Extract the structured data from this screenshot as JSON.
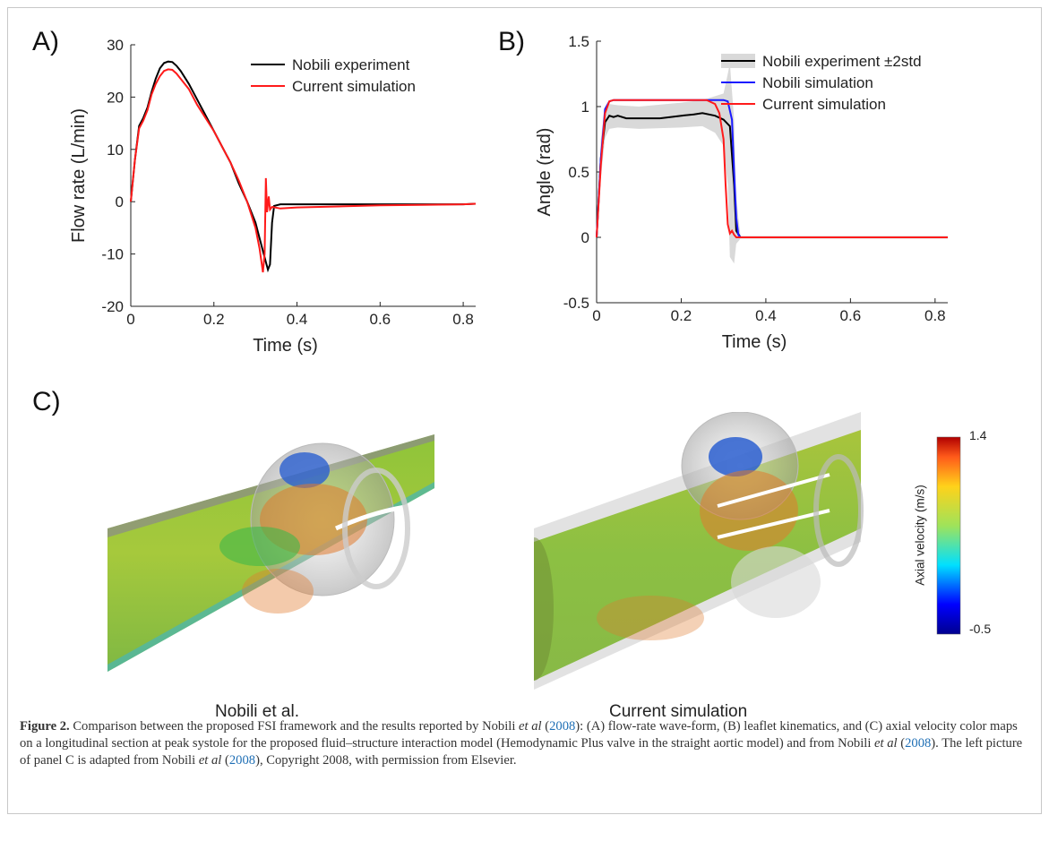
{
  "panels": {
    "a": "A)",
    "b": "B)",
    "c": "C)"
  },
  "chart_data": [
    {
      "type": "line",
      "xlabel": "Time (s)",
      "ylabel": "Flow rate (L/min)",
      "xlim": [
        0,
        0.83
      ],
      "ylim": [
        -20,
        30
      ],
      "xticks": [
        "0",
        "0.2",
        "0.4",
        "0.6",
        "0.8"
      ],
      "yticks": [
        "-20",
        "-10",
        "0",
        "10",
        "20",
        "30"
      ],
      "legend_position": "top-right",
      "series": [
        {
          "name": "Nobili experiment",
          "color": "#000000",
          "points": [
            [
              0,
              0
            ],
            [
              0.01,
              8
            ],
            [
              0.02,
              14.5
            ],
            [
              0.03,
              16
            ],
            [
              0.04,
              18
            ],
            [
              0.05,
              21
            ],
            [
              0.06,
              23.5
            ],
            [
              0.07,
              25.5
            ],
            [
              0.08,
              26.5
            ],
            [
              0.09,
              26.8
            ],
            [
              0.1,
              26.7
            ],
            [
              0.11,
              26
            ],
            [
              0.12,
              25
            ],
            [
              0.14,
              22.5
            ],
            [
              0.16,
              19.5
            ],
            [
              0.18,
              16.5
            ],
            [
              0.2,
              13.5
            ],
            [
              0.22,
              10.5
            ],
            [
              0.24,
              7.5
            ],
            [
              0.26,
              3.5
            ],
            [
              0.28,
              0
            ],
            [
              0.3,
              -4
            ],
            [
              0.31,
              -7
            ],
            [
              0.32,
              -10
            ],
            [
              0.33,
              -13
            ],
            [
              0.335,
              -12
            ],
            [
              0.34,
              -4
            ],
            [
              0.345,
              -0.8
            ],
            [
              0.36,
              -0.5
            ],
            [
              0.4,
              -0.5
            ],
            [
              0.5,
              -0.5
            ],
            [
              0.6,
              -0.5
            ],
            [
              0.7,
              -0.5
            ],
            [
              0.8,
              -0.5
            ],
            [
              0.83,
              -0.4
            ]
          ]
        },
        {
          "name": "Current simulation",
          "color": "#ff1a1a",
          "points": [
            [
              0,
              0
            ],
            [
              0.01,
              8
            ],
            [
              0.02,
              14
            ],
            [
              0.03,
              15.5
            ],
            [
              0.04,
              17.5
            ],
            [
              0.05,
              20.5
            ],
            [
              0.06,
              22.5
            ],
            [
              0.07,
              24
            ],
            [
              0.08,
              25
            ],
            [
              0.09,
              25.3
            ],
            [
              0.1,
              25.2
            ],
            [
              0.11,
              24.5
            ],
            [
              0.12,
              23.5
            ],
            [
              0.14,
              21.5
            ],
            [
              0.16,
              18.5
            ],
            [
              0.18,
              16
            ],
            [
              0.2,
              13.5
            ],
            [
              0.22,
              10.5
            ],
            [
              0.24,
              7.5
            ],
            [
              0.26,
              4
            ],
            [
              0.28,
              0
            ],
            [
              0.3,
              -5
            ],
            [
              0.31,
              -9
            ],
            [
              0.318,
              -13.5
            ],
            [
              0.322,
              -10
            ],
            [
              0.325,
              4.5
            ],
            [
              0.328,
              -2
            ],
            [
              0.332,
              1
            ],
            [
              0.335,
              -1.5
            ],
            [
              0.34,
              -1
            ],
            [
              0.36,
              -1.3
            ],
            [
              0.4,
              -1.1
            ],
            [
              0.5,
              -0.9
            ],
            [
              0.6,
              -0.7
            ],
            [
              0.7,
              -0.6
            ],
            [
              0.8,
              -0.5
            ],
            [
              0.83,
              -0.4
            ]
          ]
        }
      ]
    },
    {
      "type": "line",
      "xlabel": "Time (s)",
      "ylabel": "Angle (rad)",
      "xlim": [
        0,
        0.83
      ],
      "ylim": [
        -0.5,
        1.5
      ],
      "xticks": [
        "0",
        "0.2",
        "0.4",
        "0.6",
        "0.8"
      ],
      "yticks": [
        "-0.5",
        "0",
        "0.5",
        "1",
        "1.5"
      ],
      "legend_position": "top-right",
      "series": [
        {
          "name": "Nobili experiment ±2std",
          "color": "#000000",
          "band_color": "#d9d9d9",
          "points": [
            [
              0,
              0
            ],
            [
              0.01,
              0.6
            ],
            [
              0.02,
              0.88
            ],
            [
              0.03,
              0.93
            ],
            [
              0.04,
              0.92
            ],
            [
              0.05,
              0.93
            ],
            [
              0.07,
              0.91
            ],
            [
              0.1,
              0.91
            ],
            [
              0.15,
              0.91
            ],
            [
              0.2,
              0.93
            ],
            [
              0.23,
              0.94
            ],
            [
              0.25,
              0.95
            ],
            [
              0.28,
              0.93
            ],
            [
              0.3,
              0.9
            ],
            [
              0.315,
              0.85
            ],
            [
              0.325,
              0.4
            ],
            [
              0.33,
              0.05
            ],
            [
              0.34,
              0
            ],
            [
              0.83,
              0
            ]
          ],
          "band_upper": [
            [
              0,
              0.05
            ],
            [
              0.01,
              0.75
            ],
            [
              0.02,
              1.0
            ],
            [
              0.03,
              1.02
            ],
            [
              0.05,
              1.01
            ],
            [
              0.1,
              1.0
            ],
            [
              0.2,
              1.03
            ],
            [
              0.25,
              1.05
            ],
            [
              0.28,
              1.08
            ],
            [
              0.3,
              1.1
            ],
            [
              0.31,
              1.25
            ],
            [
              0.315,
              1.33
            ],
            [
              0.325,
              0.9
            ],
            [
              0.33,
              0.3
            ],
            [
              0.34,
              0.01
            ],
            [
              0.83,
              0.01
            ]
          ],
          "band_lower": [
            [
              0,
              -0.05
            ],
            [
              0.01,
              0.45
            ],
            [
              0.02,
              0.76
            ],
            [
              0.03,
              0.83
            ],
            [
              0.05,
              0.84
            ],
            [
              0.1,
              0.83
            ],
            [
              0.2,
              0.84
            ],
            [
              0.25,
              0.85
            ],
            [
              0.28,
              0.8
            ],
            [
              0.3,
              0.7
            ],
            [
              0.31,
              0.4
            ],
            [
              0.315,
              -0.15
            ],
            [
              0.325,
              -0.2
            ],
            [
              0.33,
              -0.05
            ],
            [
              0.34,
              -0.01
            ],
            [
              0.83,
              -0.01
            ]
          ]
        },
        {
          "name": "Nobili simulation",
          "color": "#1a1aff",
          "points": [
            [
              0,
              0
            ],
            [
              0.01,
              0.6
            ],
            [
              0.02,
              0.98
            ],
            [
              0.03,
              1.04
            ],
            [
              0.04,
              1.05
            ],
            [
              0.1,
              1.05
            ],
            [
              0.2,
              1.05
            ],
            [
              0.3,
              1.05
            ],
            [
              0.31,
              1.04
            ],
            [
              0.32,
              0.9
            ],
            [
              0.325,
              0.5
            ],
            [
              0.33,
              0.15
            ],
            [
              0.335,
              0.02
            ],
            [
              0.34,
              0
            ],
            [
              0.83,
              0
            ]
          ]
        },
        {
          "name": "Current simulation",
          "color": "#ff1a1a",
          "points": [
            [
              0,
              0
            ],
            [
              0.01,
              0.55
            ],
            [
              0.02,
              0.95
            ],
            [
              0.03,
              1.04
            ],
            [
              0.04,
              1.05
            ],
            [
              0.1,
              1.05
            ],
            [
              0.2,
              1.05
            ],
            [
              0.26,
              1.05
            ],
            [
              0.28,
              1.02
            ],
            [
              0.29,
              0.95
            ],
            [
              0.3,
              0.75
            ],
            [
              0.305,
              0.4
            ],
            [
              0.31,
              0.1
            ],
            [
              0.315,
              0.03
            ],
            [
              0.32,
              0.05
            ],
            [
              0.325,
              0.02
            ],
            [
              0.33,
              0
            ],
            [
              0.83,
              0
            ]
          ]
        }
      ]
    }
  ],
  "colorbar": {
    "label": "Axial velocity (m/s)",
    "max": "1.4",
    "min": "-0.5"
  },
  "images": {
    "left_label": "Nobili et al.",
    "right_label": "Current simulation"
  },
  "caption": {
    "figure_label": "Figure 2.",
    "text1": " Comparison between the proposed FSI framework and the results reported by Nobili ",
    "etal1": "et al",
    "cite1": "2008",
    "text2": ": (A) flow-rate wave-form, (B) leaflet kinematics, and (C) axial velocity color maps on a longitudinal section at peak systole for the proposed fluid–structure interaction model (Hemodynamic Plus valve in the straight aortic model) and from Nobili ",
    "etal2": "et al",
    "cite2": "2008",
    "text3": ". The left picture of panel C is adapted from Nobili ",
    "etal3": "et al",
    "cite3": "2008",
    "text4": ", Copyright 2008, with permission from Elsevier."
  }
}
